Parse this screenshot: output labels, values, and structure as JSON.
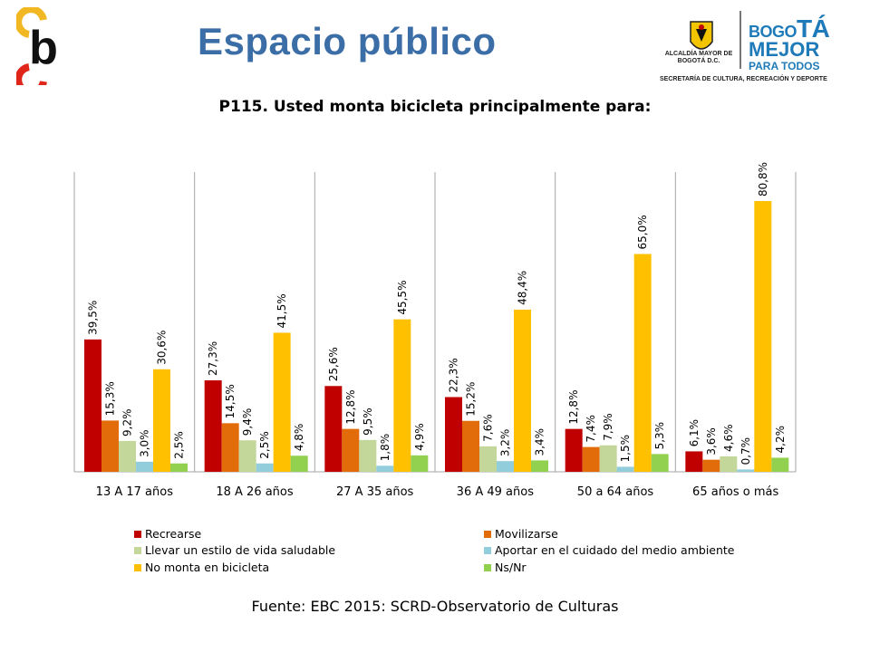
{
  "page": {
    "title": "Espacio público",
    "source": "Fuente: EBC 2015: SCRD-Observatorio de Culturas"
  },
  "logos": {
    "left_letter": "b",
    "alcaldia": "ALCALDÍA MAYOR DE BOGOTÁ D.C.",
    "bogota_line1_a": "BOGO",
    "bogota_line1_b": "TÁ",
    "bogota_line2": "MEJOR",
    "bogota_line3": "PARA TODOS",
    "secretaria": "SECRETARÍA DE CULTURA, RECREACIÓN Y DEPORTE"
  },
  "chart_data": {
    "type": "bar",
    "title": "P115. Usted monta bicicleta principalmente para:",
    "xlabel": "",
    "ylabel": "",
    "ylim": [
      0,
      100
    ],
    "grid": false,
    "legend_position": "bottom",
    "categories": [
      "13 A 17 años",
      "18 A 26 años",
      "27 A 35 años",
      "36 A 49 años",
      "50 a 64 años",
      "65 años o más"
    ],
    "series": [
      {
        "name": "Recrearse",
        "color": "#c00000",
        "values": [
          39.5,
          27.3,
          25.6,
          22.3,
          12.8,
          6.1
        ],
        "labels": [
          "39,5%",
          "27,3%",
          "25,6%",
          "22,3%",
          "12,8%",
          "6,1%"
        ]
      },
      {
        "name": "Movilizarse",
        "color": "#e36c0a",
        "values": [
          15.3,
          14.5,
          12.8,
          15.2,
          7.4,
          3.6
        ],
        "labels": [
          "15,3%",
          "14,5%",
          "12,8%",
          "15,2%",
          "7,4%",
          "3,6%"
        ]
      },
      {
        "name": "Llevar un estilo de vida saludable",
        "color": "#c4d79b",
        "values": [
          9.2,
          9.4,
          9.5,
          7.6,
          7.9,
          4.6
        ],
        "labels": [
          "9,2%",
          "9,4%",
          "9,5%",
          "7,6%",
          "7,9%",
          "4,6%"
        ]
      },
      {
        "name": "Aportar en el cuidado del medio ambiente",
        "color": "#92cddc",
        "values": [
          3.0,
          2.5,
          1.8,
          3.2,
          1.5,
          0.7
        ],
        "labels": [
          "3,0%",
          "2,5%",
          "1,8%",
          "3,2%",
          "1,5%",
          "0,7%"
        ]
      },
      {
        "name": "No monta en bicicleta",
        "color": "#ffc000",
        "values": [
          30.6,
          41.5,
          45.5,
          48.4,
          65.0,
          80.8
        ],
        "labels": [
          "30,6%",
          "41,5%",
          "45,5%",
          "48,4%",
          "65,0%",
          "80,8%"
        ]
      },
      {
        "name": "Ns/Nr",
        "color": "#92d050",
        "values": [
          2.5,
          4.8,
          4.9,
          3.4,
          5.3,
          4.2
        ],
        "labels": [
          "2,5%",
          "4,8%",
          "4,9%",
          "3,4%",
          "5,3%",
          "4,2%"
        ]
      }
    ]
  }
}
